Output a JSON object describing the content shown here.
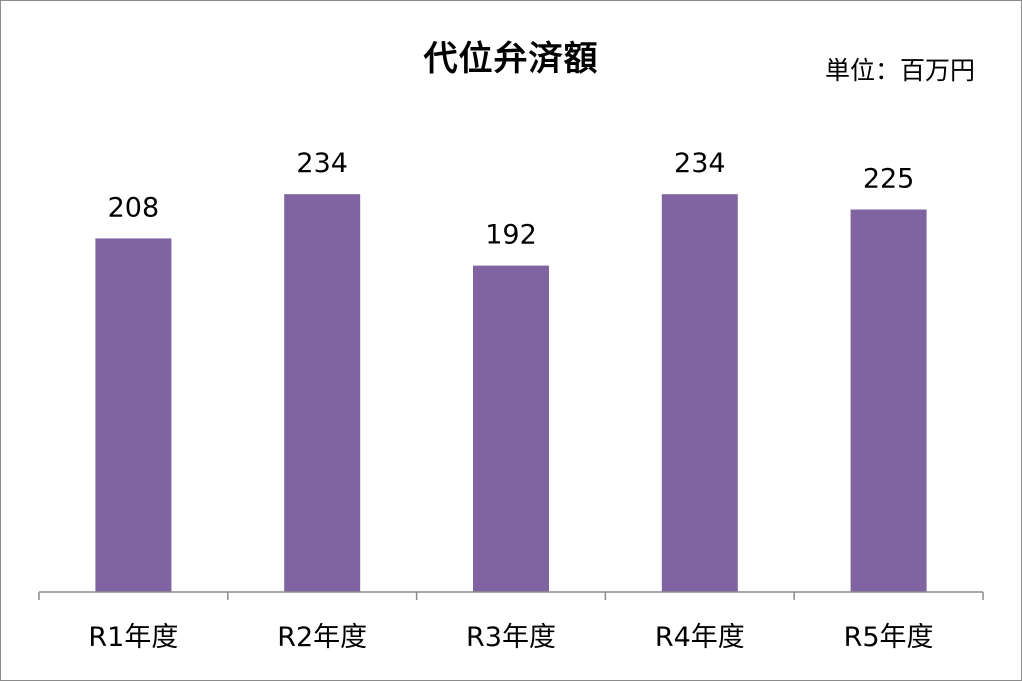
{
  "chart_data": {
    "type": "bar",
    "title": "代位弁済額",
    "unit_label": "単位：百万円",
    "categories": [
      "R1年度",
      "R2年度",
      "R3年度",
      "R4年度",
      "R5年度"
    ],
    "values": [
      208,
      234,
      192,
      234,
      225
    ],
    "data_labels": [
      "208",
      "234",
      "192",
      "234",
      "225"
    ],
    "xlabel": "",
    "ylabel": "",
    "ylim": [
      0,
      270
    ],
    "grid": false,
    "legend": "none",
    "bar_color": "#8064a2",
    "axis_color": "#8c8c8c"
  }
}
